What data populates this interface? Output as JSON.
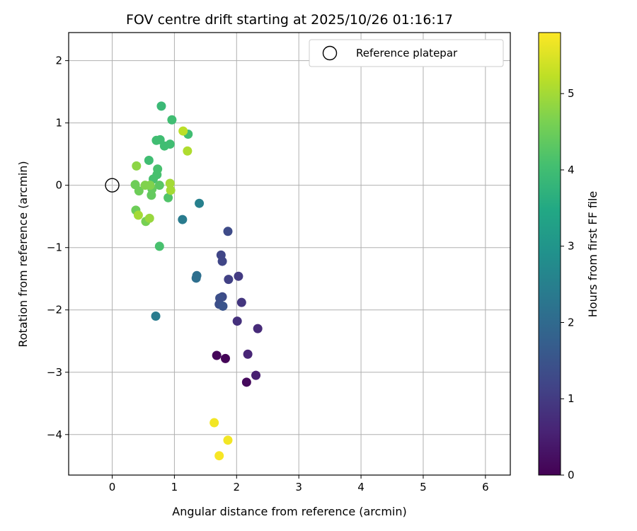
{
  "chart_data": {
    "type": "scatter",
    "title": "FOV centre drift starting at 2025/10/26 01:16:17",
    "xlabel": "Angular distance from reference (arcmin)",
    "ylabel": "Rotation from reference (arcmin)",
    "xlim": [
      -0.7,
      6.4
    ],
    "ylim": [
      -4.65,
      2.45
    ],
    "xticks": [
      0,
      1,
      2,
      3,
      4,
      5,
      6
    ],
    "yticks": [
      -4,
      -3,
      -2,
      -1,
      0,
      1,
      2
    ],
    "grid": true,
    "legend": {
      "label": "Reference platepar",
      "position": "top-right"
    },
    "reference_point": {
      "x": 0,
      "y": 0
    },
    "colorbar": {
      "label": "Hours from first FF file",
      "min": 0,
      "max": 5.8,
      "ticks": [
        0,
        1,
        2,
        3,
        4,
        5
      ],
      "colormap": "viridis"
    },
    "points": [
      {
        "x": 1.82,
        "y": -2.78,
        "c": 0.05
      },
      {
        "x": 1.68,
        "y": -2.73,
        "c": 0.1
      },
      {
        "x": 2.16,
        "y": -3.16,
        "c": 0.15
      },
      {
        "x": 2.31,
        "y": -3.05,
        "c": 0.5
      },
      {
        "x": 2.18,
        "y": -2.71,
        "c": 0.6
      },
      {
        "x": 2.34,
        "y": -2.3,
        "c": 0.7
      },
      {
        "x": 2.01,
        "y": -2.18,
        "c": 0.8
      },
      {
        "x": 2.08,
        "y": -1.88,
        "c": 0.9
      },
      {
        "x": 2.03,
        "y": -1.46,
        "c": 1.0
      },
      {
        "x": 1.87,
        "y": -1.51,
        "c": 1.1
      },
      {
        "x": 1.77,
        "y": -1.22,
        "c": 1.2
      },
      {
        "x": 1.75,
        "y": -1.12,
        "c": 1.2
      },
      {
        "x": 1.86,
        "y": -0.74,
        "c": 1.3
      },
      {
        "x": 1.77,
        "y": -1.79,
        "c": 1.3
      },
      {
        "x": 1.73,
        "y": -1.81,
        "c": 1.4
      },
      {
        "x": 1.72,
        "y": -1.91,
        "c": 1.4
      },
      {
        "x": 1.78,
        "y": -1.94,
        "c": 1.5
      },
      {
        "x": 1.36,
        "y": -1.45,
        "c": 2.1
      },
      {
        "x": 1.35,
        "y": -1.49,
        "c": 2.1
      },
      {
        "x": 0.7,
        "y": -2.1,
        "c": 2.4
      },
      {
        "x": 1.13,
        "y": -0.55,
        "c": 2.4
      },
      {
        "x": 1.4,
        "y": -0.29,
        "c": 2.5
      },
      {
        "x": 0.79,
        "y": 1.27,
        "c": 3.9
      },
      {
        "x": 0.96,
        "y": 1.05,
        "c": 4.0
      },
      {
        "x": 1.22,
        "y": 0.82,
        "c": 4.0
      },
      {
        "x": 0.77,
        "y": 0.73,
        "c": 4.0
      },
      {
        "x": 0.71,
        "y": 0.72,
        "c": 4.0
      },
      {
        "x": 0.84,
        "y": 0.63,
        "c": 4.0
      },
      {
        "x": 0.93,
        "y": 0.66,
        "c": 4.0
      },
      {
        "x": 0.59,
        "y": 0.4,
        "c": 4.0
      },
      {
        "x": 0.73,
        "y": 0.26,
        "c": 4.1
      },
      {
        "x": 0.72,
        "y": 0.17,
        "c": 4.1
      },
      {
        "x": 0.66,
        "y": 0.1,
        "c": 4.1
      },
      {
        "x": 0.76,
        "y": -0.98,
        "c": 4.1
      },
      {
        "x": 0.9,
        "y": -0.2,
        "c": 4.2
      },
      {
        "x": 0.76,
        "y": 0.0,
        "c": 4.3
      },
      {
        "x": 0.63,
        "y": -0.16,
        "c": 4.4
      },
      {
        "x": 0.64,
        "y": -0.06,
        "c": 4.4
      },
      {
        "x": 0.37,
        "y": 0.01,
        "c": 4.5
      },
      {
        "x": 0.43,
        "y": -0.09,
        "c": 4.5
      },
      {
        "x": 0.38,
        "y": -0.4,
        "c": 4.5
      },
      {
        "x": 0.54,
        "y": -0.58,
        "c": 4.6
      },
      {
        "x": 0.53,
        "y": 0.0,
        "c": 4.7
      },
      {
        "x": 0.61,
        "y": 0.0,
        "c": 4.7
      },
      {
        "x": 0.39,
        "y": 0.31,
        "c": 4.8
      },
      {
        "x": 0.6,
        "y": -0.53,
        "c": 4.9
      },
      {
        "x": 0.42,
        "y": -0.48,
        "c": 5.0
      },
      {
        "x": 0.93,
        "y": 0.03,
        "c": 5.0
      },
      {
        "x": 0.94,
        "y": -0.08,
        "c": 5.0
      },
      {
        "x": 1.21,
        "y": 0.55,
        "c": 5.1
      },
      {
        "x": 1.14,
        "y": 0.87,
        "c": 5.2
      },
      {
        "x": 1.64,
        "y": -3.81,
        "c": 5.7
      },
      {
        "x": 1.86,
        "y": -4.09,
        "c": 5.7
      },
      {
        "x": 1.72,
        "y": -4.34,
        "c": 5.75
      }
    ]
  }
}
